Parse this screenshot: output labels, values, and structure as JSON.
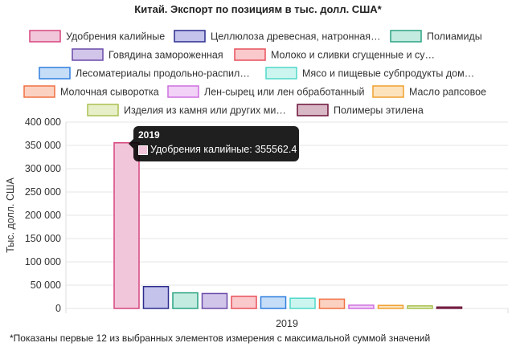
{
  "chart_data": {
    "type": "bar",
    "title": "Китай. Экспорт по позициям в тыс. долл. США*",
    "ylabel": "Тыс. долл. США",
    "xlabel": "",
    "categories": [
      "2019"
    ],
    "ylim": [
      0,
      400000
    ],
    "yticks": [
      0,
      50000,
      100000,
      150000,
      200000,
      250000,
      300000,
      350000,
      400000
    ],
    "ytick_labels": [
      "0",
      "50 000",
      "100 000",
      "150 000",
      "200 000",
      "250 000",
      "300 000",
      "350 000",
      "400 000"
    ],
    "grid": true,
    "legend_position": "top",
    "series": [
      {
        "name": "Удобрения калийные",
        "legend_label": "Удобрения калийные",
        "values": [
          355562.4
        ],
        "color": "#d6457e",
        "fill": "#f2c6da"
      },
      {
        "name": "Целлюлоза древесная, натронная...",
        "legend_label": "Целлюлоза древесная, натронная…",
        "values": [
          47000
        ],
        "color": "#2b2d8e",
        "fill": "#c4c3ec"
      },
      {
        "name": "Полиамиды",
        "legend_label": "Полиамиды",
        "values": [
          33500
        ],
        "color": "#2aa382",
        "fill": "#c4ebe0"
      },
      {
        "name": "Говядина замороженная",
        "legend_label": "Говядина замороженная",
        "values": [
          32000
        ],
        "color": "#6a4aa8",
        "fill": "#d2c5ea"
      },
      {
        "name": "Молоко и сливки сгущенные и су...",
        "legend_label": "Молоко и сливки сгущенные и су…",
        "values": [
          26000
        ],
        "color": "#e8505b",
        "fill": "#f9c9cc"
      },
      {
        "name": "Лесоматериалы продольно-распил...",
        "legend_label": "Лесоматериалы продольно-распил…",
        "values": [
          25000
        ],
        "color": "#2f7fe0",
        "fill": "#c5ddf7"
      },
      {
        "name": "Мясо и пищевые субпродукты дом...",
        "legend_label": "Мясо и пищевые субпродукты дом…",
        "values": [
          22000
        ],
        "color": "#4fd8c8",
        "fill": "#cdf5f0"
      },
      {
        "name": "Молочная сыворотка",
        "legend_label": "Молочная сыворотка",
        "values": [
          20000
        ],
        "color": "#f07040",
        "fill": "#fbd2c2"
      },
      {
        "name": "Лен-сырец или лен обработанный",
        "legend_label": "Лен-сырец или лен обработанный",
        "values": [
          7000
        ],
        "color": "#cf6fe0",
        "fill": "#f2d2f7"
      },
      {
        "name": "Масло рапсовое",
        "legend_label": "Масло рапсовое",
        "values": [
          6500
        ],
        "color": "#f0a030",
        "fill": "#fce3bd"
      },
      {
        "name": "Изделия из камня или других ми...",
        "legend_label": "Изделия из камня или других ми…",
        "values": [
          5500
        ],
        "color": "#a8c050",
        "fill": "#e6efc8"
      },
      {
        "name": "Полимеры этилена",
        "legend_label": "Полимеры этилена",
        "values": [
          3000
        ],
        "color": "#6b1238",
        "fill": "#d9b8c6"
      }
    ],
    "tooltip": {
      "title": "2019",
      "text": "Удобрения калийные: 355562.4"
    }
  },
  "footnote": "*Показаны первые 12 из выбранных элементов измерения с максимальной суммой значений"
}
